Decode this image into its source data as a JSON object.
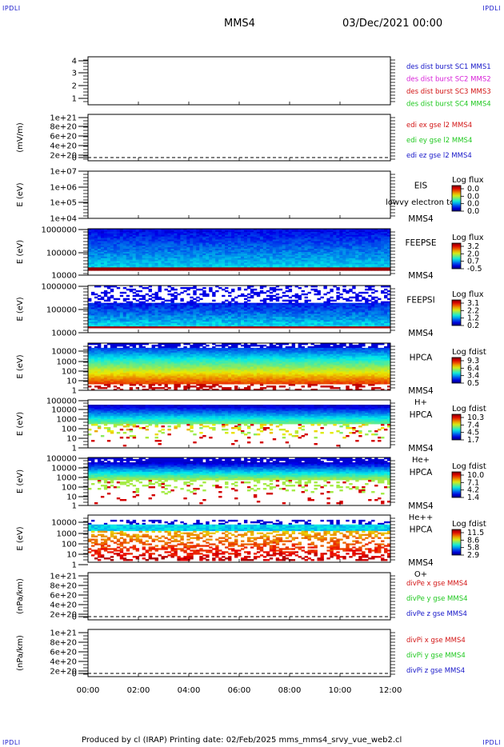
{
  "header": {
    "corner_tl": "IPDLI",
    "corner_tr": "IPDLI",
    "corner_bl": "IPDLI",
    "corner_br": "IPDLI",
    "spacecraft": "MMS4",
    "datetime": "03/Dec/2021 00:00"
  },
  "footer": {
    "text": "Produced by cl (IRAP)   Printing date: 02/Feb/2025   mms_mms4_srvy_vue_web2.cl"
  },
  "colors": {
    "blue": "#1414c8",
    "magenta": "#d81ed8",
    "red": "#d21414",
    "green": "#1ec81e"
  },
  "chart_data": [
    {
      "id": "des",
      "type": "line",
      "ylabel": "",
      "yticks": [
        "4",
        "3",
        "2",
        "1"
      ],
      "legend": [
        {
          "text": "des dist burst SC1 MMS1",
          "color": "blue"
        },
        {
          "text": "des dist burst SC2 MMS2",
          "color": "magenta"
        },
        {
          "text": "des dist burst SC3 MMS3",
          "color": "red"
        },
        {
          "text": "des dist burst SC4 MMS4",
          "color": "green"
        }
      ]
    },
    {
      "id": "edi",
      "type": "line",
      "ylabel": "(mV/m)",
      "yticks": [
        "1e+21",
        "8e+20",
        "6e+20",
        "4e+20",
        "2e+20",
        "0"
      ],
      "legend": [
        {
          "text": "edi ex gse l2 MMS4",
          "color": "red"
        },
        {
          "text": "edi ey gse l2 MMS4",
          "color": "green"
        },
        {
          "text": "edi ez gse l2 MMS4",
          "color": "blue"
        }
      ]
    },
    {
      "id": "eis",
      "type": "heatmap",
      "ylabel": "E (eV)",
      "yticks": [
        "1e+07",
        "1e+06",
        "1e+05",
        "1e+04"
      ],
      "labels": [
        "EIS",
        "MMS4"
      ],
      "overlay": "lowvy electron to",
      "colorbar_title": "Log flux",
      "colorbar_ticks": [
        "0.0",
        "0.0",
        "0.0",
        "0.0"
      ]
    },
    {
      "id": "feepse",
      "type": "heatmap",
      "ylabel": "E (eV)",
      "yticks": [
        "1000000",
        "100000",
        "10000"
      ],
      "labels": [
        "FEEPSE",
        "MMS4"
      ],
      "colorbar_title": "Log flux",
      "colorbar_ticks": [
        "3.2",
        "2.0",
        "0.7",
        "-0.5"
      ]
    },
    {
      "id": "feepsi",
      "type": "heatmap",
      "ylabel": "E (eV)",
      "yticks": [
        "1000000",
        "100000",
        "10000"
      ],
      "labels": [
        "FEEPSI",
        "MMS4"
      ],
      "colorbar_title": "Log flux",
      "colorbar_ticks": [
        "3.1",
        "2.2",
        "1.2",
        "0.2"
      ]
    },
    {
      "id": "hpca_h",
      "type": "heatmap",
      "ylabel": "E (eV)",
      "yticks": [
        "10000",
        "1000",
        "100",
        "10",
        "1"
      ],
      "labels": [
        "HPCA",
        "MMS4",
        "H+"
      ],
      "colorbar_title": "Log fdist",
      "colorbar_ticks": [
        "9.3",
        "6.4",
        "3.4",
        "0.5"
      ]
    },
    {
      "id": "hpca_he",
      "type": "heatmap",
      "ylabel": "E (eV)",
      "yticks": [
        "100000",
        "10000",
        "1000",
        "100",
        "10",
        "1"
      ],
      "labels": [
        "HPCA",
        "MMS4",
        "He+"
      ],
      "colorbar_title": "Log fdist",
      "colorbar_ticks": [
        "10.3",
        "7.4",
        "4.5",
        "1.7"
      ]
    },
    {
      "id": "hpca_hepp",
      "type": "heatmap",
      "ylabel": "E (eV)",
      "yticks": [
        "100000",
        "10000",
        "1000",
        "100",
        "10",
        "1"
      ],
      "labels": [
        "HPCA",
        "MMS4",
        "He++"
      ],
      "colorbar_title": "Log fdist",
      "colorbar_ticks": [
        "10.0",
        "7.1",
        "4.2",
        "1.4"
      ]
    },
    {
      "id": "hpca_o",
      "type": "heatmap",
      "ylabel": "E (eV)",
      "yticks": [
        "10000",
        "1000",
        "100",
        "10",
        "1"
      ],
      "labels": [
        "HPCA",
        "MMS4",
        "O+"
      ],
      "colorbar_title": "Log fdist",
      "colorbar_ticks": [
        "11.5",
        "8.6",
        "5.8",
        "2.9"
      ]
    },
    {
      "id": "divpe",
      "type": "line",
      "ylabel": "(nPa/km)",
      "yticks": [
        "1e+21",
        "8e+20",
        "6e+20",
        "4e+20",
        "2e+20",
        "0"
      ],
      "legend": [
        {
          "text": "divPe x gse MMS4",
          "color": "red"
        },
        {
          "text": "divPe y gse MMS4",
          "color": "green"
        },
        {
          "text": "divPe z gse MMS4",
          "color": "blue"
        }
      ]
    },
    {
      "id": "divpi",
      "type": "line",
      "ylabel": "(nPa/km)",
      "yticks": [
        "1e+21",
        "8e+20",
        "6e+20",
        "4e+20",
        "2e+20",
        "0"
      ],
      "legend": [
        {
          "text": "divPi x gse MMS4",
          "color": "red"
        },
        {
          "text": "divPi y gse MMS4",
          "color": "green"
        },
        {
          "text": "divPi z gse MMS4",
          "color": "blue"
        }
      ]
    }
  ],
  "xaxis": {
    "ticks": [
      "00:00",
      "02:00",
      "04:00",
      "06:00",
      "08:00",
      "10:00",
      "12:00"
    ]
  }
}
